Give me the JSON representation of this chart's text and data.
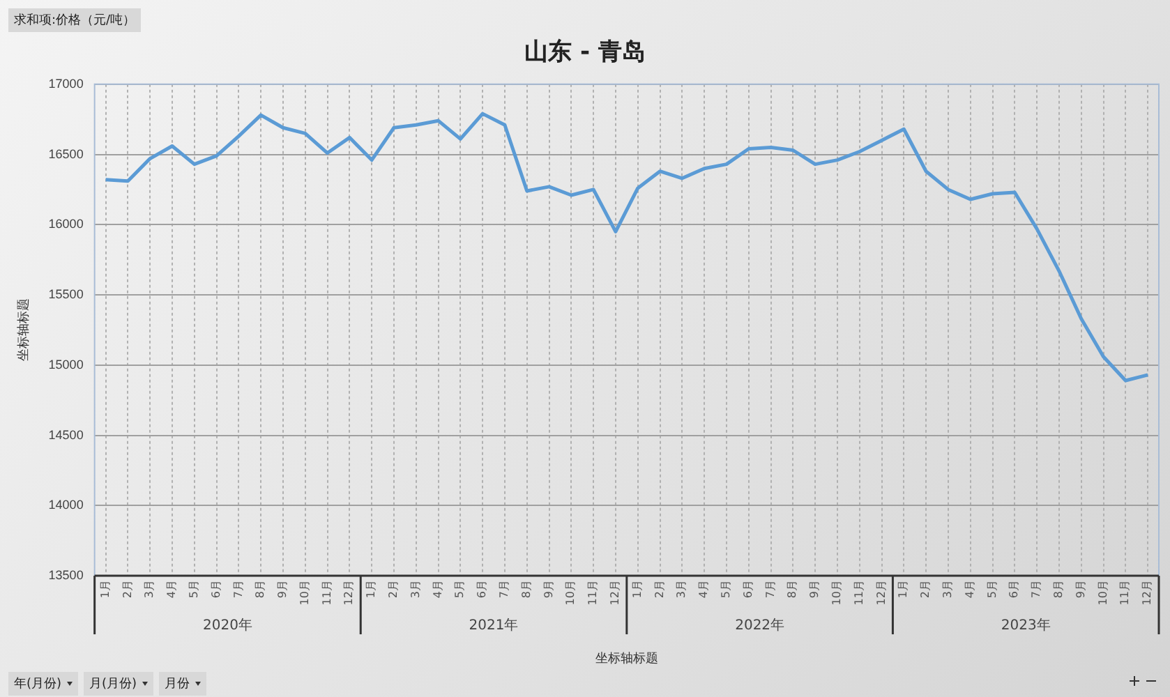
{
  "chart_data": {
    "type": "line",
    "title": "山东 - 青岛",
    "xlabel": "坐标轴标题",
    "ylabel": "坐标轴标题",
    "categories": [
      "1月",
      "2月",
      "3月",
      "4月",
      "5月",
      "6月",
      "7月",
      "8月",
      "9月",
      "10月",
      "11月",
      "12月",
      "1月",
      "2月",
      "3月",
      "4月",
      "5月",
      "6月",
      "7月",
      "8月",
      "9月",
      "10月",
      "11月",
      "12月",
      "1月",
      "2月",
      "3月",
      "4月",
      "5月",
      "6月",
      "7月",
      "8月",
      "9月",
      "10月",
      "11月",
      "12月",
      "1月",
      "2月",
      "3月",
      "4月",
      "5月",
      "6月",
      "7月",
      "8月",
      "9月",
      "10月",
      "11月",
      "12月"
    ],
    "series": [
      {
        "color": "#5b9bd5",
        "values": [
          16320,
          16310,
          16470,
          16560,
          16430,
          16490,
          16630,
          16780,
          16690,
          16650,
          16510,
          16620,
          16460,
          16690,
          16710,
          16740,
          16610,
          16790,
          16710,
          16240,
          16270,
          16210,
          16250,
          15950,
          16260,
          16380,
          16330,
          16400,
          16430,
          16540,
          16550,
          16530,
          16430,
          16460,
          16520,
          16600,
          16680,
          16380,
          16250,
          16180,
          16220,
          16230,
          15970,
          15670,
          15330,
          15060,
          14890,
          14930
        ]
      }
    ],
    "ylim": [
      13500,
      17000
    ],
    "yticks": [
      13500,
      14000,
      14500,
      15000,
      15500,
      16000,
      16500,
      17000
    ],
    "grid": true,
    "legend": false,
    "marker": "none",
    "line_style": "solid",
    "annotations": [
      "求和项:价格（元/吨）",
      "2020年",
      "2021年",
      "2022年",
      "2023年",
      "年(月份)",
      "月(月份)",
      "月份"
    ]
  }
}
